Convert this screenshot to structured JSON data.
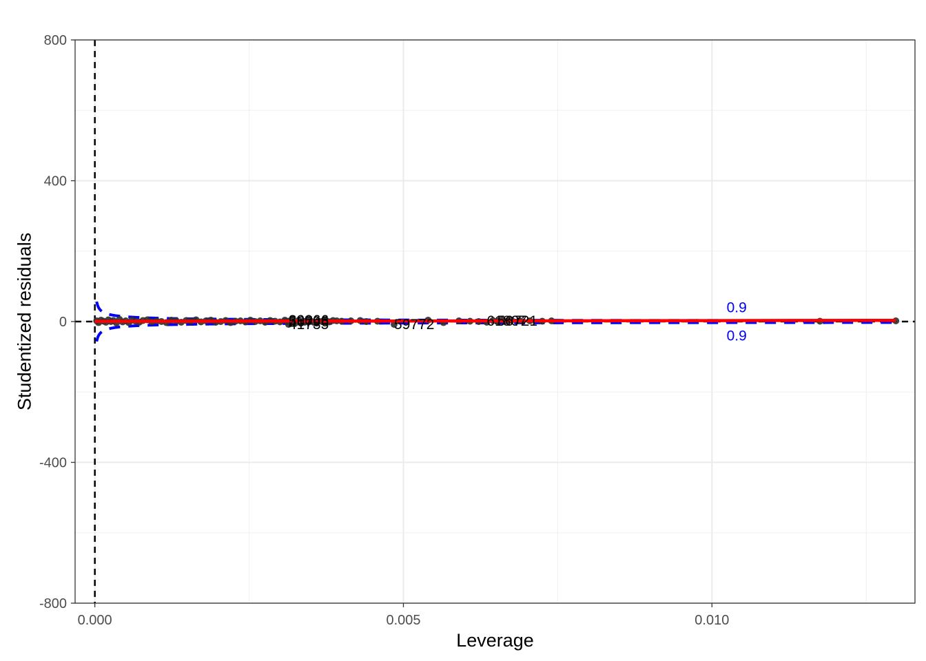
{
  "chart_data": {
    "type": "scatter",
    "title": "",
    "xlabel": "Leverage",
    "ylabel": "Studentized residuals",
    "xlim": [
      -0.00032,
      0.01329
    ],
    "ylim": [
      -800,
      800
    ],
    "x_ticks": [
      0.0,
      0.005,
      0.01
    ],
    "x_tick_labels": [
      "0.000",
      "0.005",
      "0.010"
    ],
    "y_ticks": [
      -800,
      -400,
      0,
      400,
      800
    ],
    "y_tick_labels": [
      "-800",
      "-400",
      "0",
      "400",
      "800"
    ],
    "grid": true,
    "theme": "black-and-white with light grey grid",
    "reference_lines": [
      {
        "orientation": "horizontal",
        "value": 0,
        "style": "dashed",
        "color": "#000000"
      },
      {
        "orientation": "vertical",
        "value": 0,
        "style": "dashed",
        "color": "#000000"
      }
    ],
    "points": {
      "color": "#333333",
      "x": [
        3e-05,
        6e-05,
        0.0001,
        0.00014,
        0.00018,
        0.00022,
        0.00026,
        0.0003,
        0.00035,
        0.0004,
        0.00045,
        0.0005,
        0.00055,
        0.0006,
        0.00066,
        0.00072,
        0.00078,
        0.00085,
        0.00092,
        0.001,
        0.00108,
        0.00116,
        0.00124,
        0.00132,
        0.0014,
        0.00148,
        0.00156,
        0.00164,
        0.00172,
        0.0018,
        0.00188,
        0.00196,
        0.00204,
        0.00212,
        0.0022,
        0.00228,
        0.00236,
        0.00244,
        0.00252,
        0.0026,
        0.00268,
        0.00276,
        0.00284,
        0.00292,
        0.003,
        0.00308,
        0.00314,
        0.00316,
        0.0032,
        0.00325,
        0.0033,
        0.00335,
        0.0034,
        0.00345,
        0.0035,
        0.00356,
        0.00362,
        0.00368,
        0.00374,
        0.0038,
        0.00386,
        0.00392,
        0.004,
        0.00415,
        0.0043,
        0.0044,
        0.00458,
        0.00485,
        0.0054,
        0.00565,
        0.0059,
        0.00608,
        0.00622,
        0.00635,
        0.00645,
        0.00652,
        0.0066,
        0.00668,
        0.00675,
        0.00688,
        0.00705,
        0.00725,
        0.0074,
        0.01175,
        0.01298
      ],
      "y": [
        2,
        -3,
        4,
        1,
        -2,
        5,
        0,
        3,
        -4,
        6,
        -1,
        2,
        -3,
        4,
        1,
        -2,
        3,
        5,
        -1,
        2,
        0,
        -3,
        4,
        2,
        -2,
        3,
        1,
        5,
        -1,
        2,
        4,
        -2,
        0,
        3,
        -3,
        1,
        2,
        -1,
        4,
        0,
        2,
        -2,
        3,
        1,
        -1,
        4,
        -8,
        2,
        6,
        -4,
        3,
        0,
        -2,
        5,
        1,
        -3,
        2,
        0,
        4,
        -1,
        3,
        2,
        1,
        2,
        3,
        0,
        1,
        -8,
        4,
        -3,
        2,
        1,
        0,
        -2,
        3,
        1,
        5,
        2,
        4,
        3,
        2,
        1,
        2,
        1,
        2
      ]
    },
    "point_labels": [
      {
        "text": "39066",
        "x": 0.00314,
        "y": 4
      },
      {
        "text": "56796",
        "x": 0.00314,
        "y": 0
      },
      {
        "text": "41735",
        "x": 0.00314,
        "y": -8
      },
      {
        "text": "59772",
        "x": 0.00485,
        "y": -8
      },
      {
        "text": "61807",
        "x": 0.00635,
        "y": 2
      },
      {
        "text": "56721",
        "x": 0.00652,
        "y": 2
      }
    ],
    "smooth_line": {
      "color": "#ff0000",
      "x": [
        0.0,
        0.002,
        0.004,
        0.006,
        0.008,
        0.01,
        0.01298
      ],
      "y": [
        0.5,
        1.0,
        1.3,
        1.8,
        2.3,
        2.8,
        3.5
      ]
    },
    "cook_contours": {
      "color": "#0000ff",
      "style": "dashed",
      "label": "0.9",
      "x_start": 3e-05,
      "x_end": 0.01298,
      "note_label_x": 0.0102
    }
  }
}
